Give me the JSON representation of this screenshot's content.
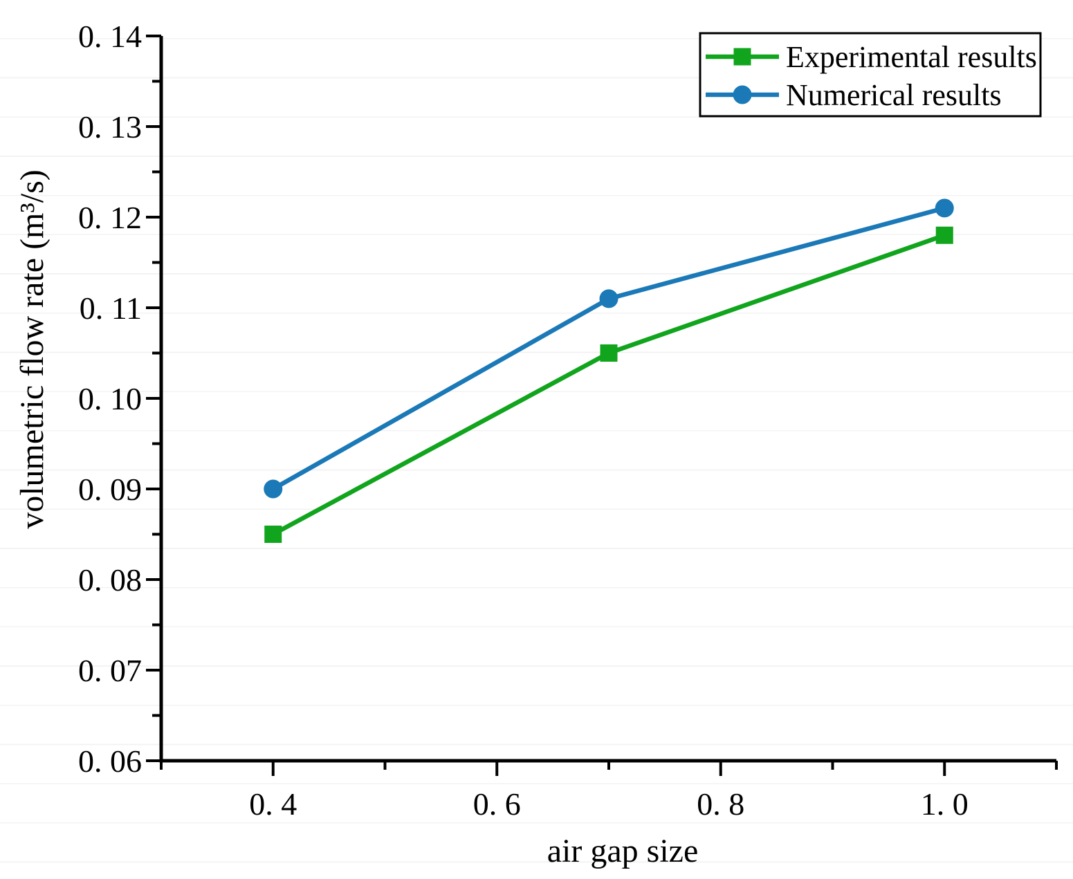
{
  "chart_data": {
    "type": "line",
    "title": "",
    "x": [
      0.4,
      0.7,
      1.0
    ],
    "series": [
      {
        "name": "Experimental results",
        "values": [
          0.085,
          0.105,
          0.118
        ],
        "color": "#11a41d",
        "marker": "square"
      },
      {
        "name": "Numerical results",
        "values": [
          0.09,
          0.111,
          0.121
        ],
        "color": "#1b79b7",
        "marker": "circle"
      }
    ],
    "xlabel": "air gap size",
    "ylabel": "volumetric flow rate (m³/s)",
    "xlim": [
      0.3,
      1.1
    ],
    "ylim": [
      0.06,
      0.14
    ],
    "x_major_ticks": [
      0.4,
      0.6,
      0.8,
      1.0
    ],
    "x_tick_labels": [
      "0. 4",
      "0. 6",
      "0. 8",
      "1. 0"
    ],
    "x_minor_ticks": [
      0.3,
      0.5,
      0.7,
      0.9,
      1.1
    ],
    "y_major_ticks": [
      0.06,
      0.07,
      0.08,
      0.09,
      0.1,
      0.11,
      0.12,
      0.13,
      0.14
    ],
    "y_tick_labels": [
      "0. 06",
      "0. 07",
      "0. 08",
      "0. 09",
      "0. 10",
      "0. 11",
      "0. 12",
      "0. 13",
      "0. 14"
    ],
    "y_minor_ticks": [
      0.065,
      0.075,
      0.085,
      0.095,
      0.105,
      0.115,
      0.125,
      0.135
    ],
    "grid": false,
    "legend": {
      "position": "top-right",
      "entries": [
        "Experimental results",
        "Numerical results"
      ],
      "border_color": "#000000",
      "background": "#ffffff"
    },
    "axis_color": "#000000",
    "text_color": "#000000"
  }
}
